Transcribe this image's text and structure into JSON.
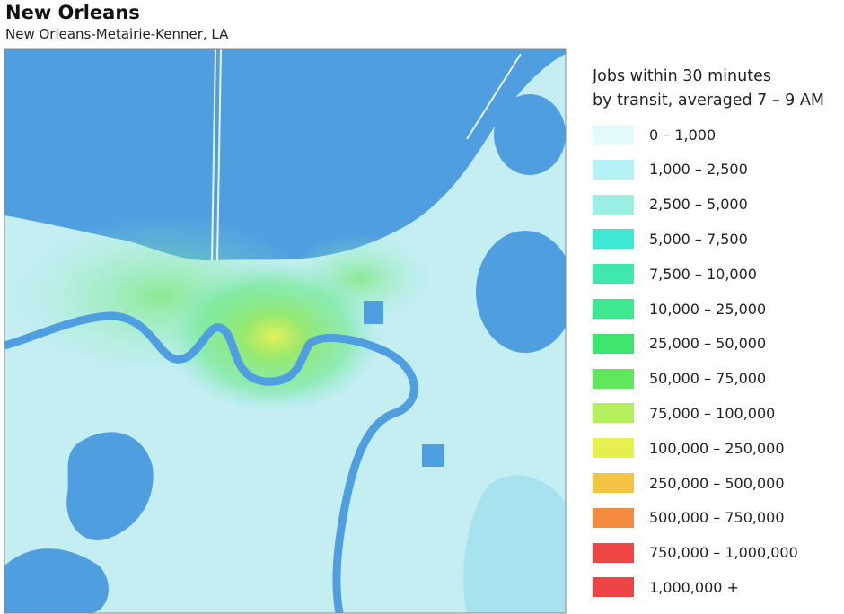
{
  "header": {
    "title": "New Orleans",
    "subtitle": "New Orleans-Metairie-Kenner, LA"
  },
  "legend": {
    "title_lines": [
      "Jobs within 30 minutes",
      "by transit, averaged 7 – 9 AM"
    ],
    "items": [
      {
        "label": "0 – 1,000",
        "color": "#e4fbfb"
      },
      {
        "label": "1,000 – 2,500",
        "color": "#b5f2f6"
      },
      {
        "label": "2,500 – 5,000",
        "color": "#9cefe3"
      },
      {
        "label": "5,000 – 7,500",
        "color": "#3ee8d2"
      },
      {
        "label": "7,500 – 10,000",
        "color": "#3fe8ad"
      },
      {
        "label": "10,000 – 25,000",
        "color": "#3de891"
      },
      {
        "label": "25,000 – 50,000",
        "color": "#3de46e"
      },
      {
        "label": "50,000 – 75,000",
        "color": "#60e85c"
      },
      {
        "label": "75,000 – 100,000",
        "color": "#b4f05b"
      },
      {
        "label": "100,000 – 250,000",
        "color": "#e6f04f"
      },
      {
        "label": "250,000 – 500,000",
        "color": "#f5c443"
      },
      {
        "label": "500,000 – 750,000",
        "color": "#f58b3e"
      },
      {
        "label": "750,000 – 1,000,000",
        "color": "#f04545"
      },
      {
        "label": "1,000,000 +",
        "color": "#ee4444"
      }
    ]
  }
}
